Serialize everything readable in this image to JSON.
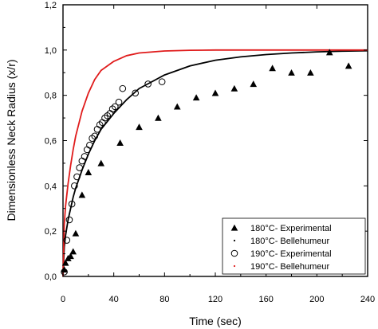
{
  "chart_data": {
    "type": "scatter",
    "xlabel": "Time (sec)",
    "ylabel": "Dimensionless Neck Radius (x/r)",
    "xlim": [
      0,
      240
    ],
    "ylim": [
      0,
      1.2
    ],
    "x_ticks": [
      "0",
      "40",
      "80",
      "120",
      "160",
      "200",
      "240"
    ],
    "y_ticks": [
      "0,0",
      "0,2",
      "0,4",
      "0,6",
      "0,8",
      "1,0",
      "1,2"
    ],
    "x_tick_values": [
      0,
      40,
      80,
      120,
      160,
      200,
      240
    ],
    "y_tick_values": [
      0,
      0.2,
      0.4,
      0.6,
      0.8,
      1.0,
      1.2
    ],
    "legend_position": "bottom-right",
    "series": [
      {
        "name": "180°C- Experimental",
        "kind": "points",
        "marker": "filled-triangle",
        "color": "#000000",
        "x": [
          1,
          2,
          4,
          6,
          8,
          10,
          15,
          20,
          30,
          45,
          60,
          75,
          90,
          105,
          120,
          135,
          150,
          165,
          180,
          195,
          210,
          225
        ],
        "y": [
          0.03,
          0.06,
          0.08,
          0.09,
          0.11,
          0.19,
          0.36,
          0.46,
          0.5,
          0.59,
          0.66,
          0.7,
          0.75,
          0.79,
          0.81,
          0.83,
          0.85,
          0.92,
          0.9,
          0.9,
          0.99,
          0.93
        ]
      },
      {
        "name": "180°C- Bellehumeur",
        "kind": "line",
        "color": "#000000",
        "x": [
          0,
          1,
          2,
          4,
          6,
          8,
          10,
          15,
          20,
          25,
          30,
          40,
          50,
          60,
          70,
          80,
          100,
          120,
          140,
          160,
          180,
          200,
          220,
          240
        ],
        "y": [
          0,
          0.13,
          0.18,
          0.25,
          0.3,
          0.35,
          0.39,
          0.47,
          0.54,
          0.6,
          0.65,
          0.72,
          0.78,
          0.83,
          0.86,
          0.89,
          0.93,
          0.955,
          0.97,
          0.98,
          0.987,
          0.992,
          0.995,
          0.997
        ]
      },
      {
        "name": "190°C- Experimental",
        "kind": "points",
        "marker": "open-circle",
        "color": "#000000",
        "x": [
          1,
          3,
          5,
          7,
          9,
          11,
          13,
          15,
          17,
          19,
          21,
          23,
          25,
          27,
          29,
          31,
          33,
          35,
          37,
          39,
          41,
          44,
          47,
          57,
          67,
          78
        ],
        "y": [
          0.02,
          0.16,
          0.25,
          0.32,
          0.4,
          0.44,
          0.48,
          0.51,
          0.53,
          0.56,
          0.58,
          0.61,
          0.62,
          0.65,
          0.67,
          0.68,
          0.7,
          0.71,
          0.72,
          0.74,
          0.75,
          0.77,
          0.83,
          0.81,
          0.85,
          0.86
        ]
      },
      {
        "name": "190°C- Bellehumeur",
        "kind": "line",
        "color": "#e01b1b",
        "x": [
          0,
          1,
          2,
          4,
          6,
          8,
          10,
          15,
          20,
          25,
          30,
          40,
          50,
          60,
          80,
          100,
          120,
          160,
          200,
          240
        ],
        "y": [
          0,
          0.23,
          0.31,
          0.41,
          0.49,
          0.56,
          0.62,
          0.73,
          0.81,
          0.87,
          0.91,
          0.95,
          0.975,
          0.987,
          0.996,
          0.999,
          1.0,
          1.0,
          1.0,
          1.0
        ]
      }
    ]
  }
}
